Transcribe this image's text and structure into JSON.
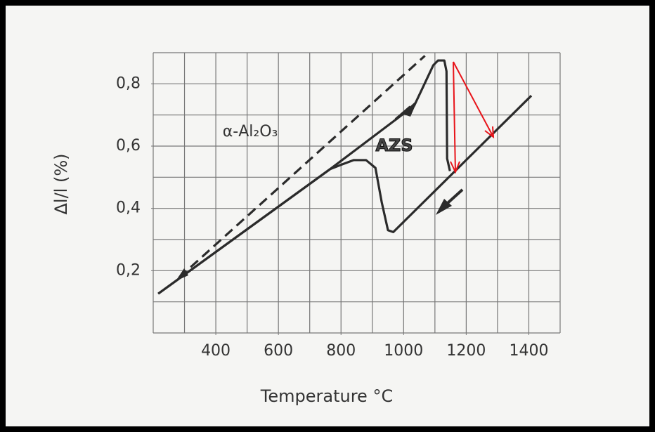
{
  "chart_data": {
    "type": "line",
    "xlabel": "Temperature °C",
    "ylabel": "Δl/l (%)",
    "xlim": [
      200,
      1500
    ],
    "ylim": [
      0,
      0.9
    ],
    "xticks": [
      400,
      600,
      800,
      1000,
      1200,
      1400
    ],
    "yticks": [
      {
        "value": 0.2,
        "label": "0,2"
      },
      {
        "value": 0.4,
        "label": "0,4"
      },
      {
        "value": 0.6,
        "label": "0,6"
      },
      {
        "value": 0.8,
        "label": "0,8"
      }
    ],
    "xgrid": [
      200,
      300,
      400,
      500,
      600,
      700,
      800,
      900,
      1000,
      1100,
      1200,
      1300,
      1400,
      1500
    ],
    "ygrid": [
      0,
      0.1,
      0.2,
      0.3,
      0.4,
      0.5,
      0.6,
      0.7,
      0.8,
      0.9
    ],
    "grid": true,
    "series": [
      {
        "color": "#2b2b2b",
        "dash": false,
        "x": [
          216,
          765,
          1034,
          1095,
          1110,
          1130,
          1137,
          1139,
          1148
        ],
        "values": [
          0.126,
          0.526,
          0.73,
          0.86,
          0.875,
          0.875,
          0.84,
          0.56,
          0.52
        ]
      },
      {
        "color": "#2b2b2b",
        "dash": false,
        "x": [
          1408,
          967,
          950,
          930,
          910,
          880,
          840,
          800,
          765,
          216
        ],
        "values": [
          0.762,
          0.324,
          0.33,
          0.42,
          0.53,
          0.555,
          0.555,
          0.54,
          0.526,
          0.126
        ]
      },
      {
        "color": "#2b2b2b",
        "dash": true,
        "x": [
          283,
          1068
        ],
        "values": [
          0.178,
          0.89
        ]
      }
    ],
    "annotations": [
      {
        "text": "α-Al₂O₃",
        "x": 510,
        "y": 0.645
      },
      {
        "text": "AZS",
        "x": 970,
        "y": 0.6
      }
    ]
  }
}
